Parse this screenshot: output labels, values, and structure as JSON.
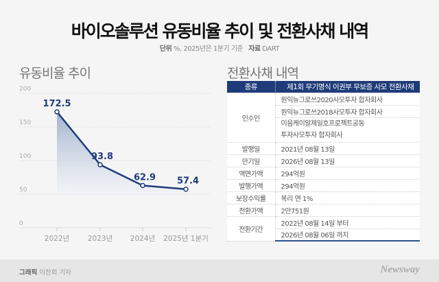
{
  "header": {
    "title": "바이오솔루션 유동비율 추이 및 전환사채 내역",
    "unit_label": "단위",
    "unit_text": "%, 2025년은 1분기 기준",
    "source_label": "자료",
    "source_text": "DART"
  },
  "chart_data": {
    "type": "area",
    "title": "유동비율 추이",
    "categories": [
      "2022년",
      "2023년",
      "2024년",
      "2025년 1분기"
    ],
    "values": [
      172.5,
      93.8,
      62.9,
      57.4
    ],
    "data_labels": [
      "172.5",
      "93.8",
      "62.9",
      "57.4"
    ],
    "yticks": [
      "0",
      "50",
      "100",
      "150",
      "200"
    ],
    "ylim": [
      0,
      200
    ],
    "grid": true,
    "color": "#1f3c7a"
  },
  "table": {
    "title": "전환사채 내역",
    "header": {
      "key": "종류",
      "value": "제1회 무기명식 이권부 무보증 사모 전환사채"
    },
    "buyer_label": "인수인",
    "buyers": [
      "원익뉴그로쓰2020사모투자 합자회사",
      "원익뉴그로쓰2018사모투자 합자회사",
      "이음케이알제일호프로젝트공동",
      "투자사모투자 합자회사"
    ],
    "rows": [
      {
        "k": "발행일",
        "v": "2021년 08월 13일"
      },
      {
        "k": "만기일",
        "v": "2026년 08월 13일"
      },
      {
        "k": "액면가액",
        "v": "294억원"
      },
      {
        "k": "발행가액",
        "v": "294억원"
      },
      {
        "k": "보장수익률",
        "v": "복리 연 1%"
      },
      {
        "k": "전환가액",
        "v": "2만751원"
      }
    ],
    "period_label": "전환기간",
    "period": [
      "2022년 08월 14일 부터",
      "2026년 08월 06일 까지"
    ]
  },
  "footer": {
    "credit_label": "그래픽",
    "credit_name": "이찬희 기자",
    "logo": "Newsway"
  }
}
